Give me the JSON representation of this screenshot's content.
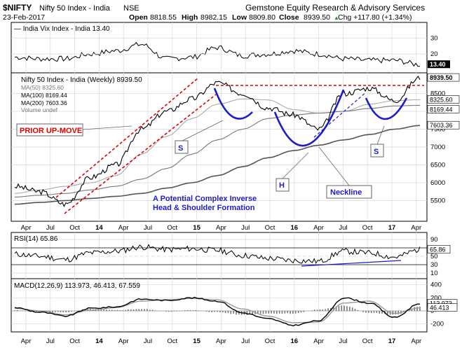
{
  "header": {
    "symbol": "$NIFTY",
    "name": "Nifty 50 Index - India",
    "exchange": "NSE",
    "provider": "Gemstone Equity Research & Advisory Services",
    "date": "23-Feb-2017",
    "open_label": "Open",
    "open": "8818.55",
    "high_label": "High",
    "high": "8982.15",
    "low_label": "Low",
    "low": "8809.80",
    "close_label": "Close",
    "close": "8939.50",
    "change": "Chg +117.80 (+1.34%)",
    "change_arrow": "▲"
  },
  "x_axis_labels": [
    "Apr",
    "Jul",
    "Oct",
    "14",
    "Apr",
    "Jul",
    "Oct",
    "15",
    "Apr",
    "Jul",
    "Oct",
    "16",
    "Apr",
    "Jul",
    "Oct",
    "17",
    "Apr"
  ],
  "colors": {
    "price": "#000000",
    "ma50": "#aaaaaa",
    "ma100": "#777777",
    "ma200": "#555555",
    "annotation_red": "#dd0000",
    "annotation_blue": "#1c1ccc",
    "callout_border": "#666666",
    "grid": "#d8d8d8"
  },
  "panels": {
    "vix": {
      "legend": "— India Vix Index - India 13.40",
      "ticks": [
        "30",
        "20"
      ],
      "last_badge": "13.40"
    },
    "price": {
      "legend": [
        "Nifty 50 Index - India (Weekly) 8939.50",
        "MA(50) 8325.60",
        "MA(100) 8169.44",
        "MA(200) 7603.36",
        "Volume undef"
      ],
      "ticks": [
        "8500",
        "8000",
        "7500",
        "7000",
        "6500",
        "6000",
        "5500"
      ],
      "badges": [
        "8939.50",
        "8325.60",
        "8169.44",
        "7603.36"
      ],
      "annotations": {
        "prior_up_move": "PRIOR UP-MOVE",
        "s_left": "S",
        "s_right": "S",
        "h": "H",
        "neckline": "Neckline",
        "formation_line1": "A Potential Complex Inverse",
        "formation_line2": "Head & Shoulder Formation"
      }
    },
    "rsi": {
      "legend": "RSI(14) 65.86",
      "ticks": [
        "90",
        "70",
        "50",
        "30",
        "10"
      ],
      "last_badge": "65.86"
    },
    "macd": {
      "legend": "MACD(12,26,9) 113.973, 46.413, 67.559",
      "ticks": [
        "400",
        "200",
        "0",
        "-200"
      ],
      "badges": [
        "113.973",
        "46.413"
      ]
    }
  },
  "chart_data": [
    {
      "type": "line",
      "title": "India Vix Index - India 13.40",
      "x": [
        "Apr",
        "Jul",
        "Oct",
        "14",
        "Apr",
        "Jul",
        "Oct",
        "15",
        "Apr",
        "Jul",
        "Oct",
        "16",
        "Apr",
        "Jul",
        "Oct",
        "17",
        "Apr"
      ],
      "series": [
        {
          "name": "India Vix Index - India",
          "values": [
            18,
            17,
            17,
            20,
            22,
            26,
            17,
            18,
            24,
            19,
            20,
            22,
            20,
            17,
            16,
            16,
            13.4
          ]
        }
      ],
      "ylim": [
        10,
        38
      ]
    },
    {
      "type": "line",
      "title": "Nifty 50 Index - India (Weekly) 8939.50",
      "x": [
        "Apr",
        "Jul",
        "Oct",
        "14",
        "Apr",
        "Jul",
        "Oct",
        "15",
        "Apr",
        "Jul",
        "Oct",
        "16",
        "Apr",
        "Jul",
        "Oct",
        "17",
        "Apr"
      ],
      "series": [
        {
          "name": "Nifty 50 Index - India (Weekly) 8939.50",
          "values": [
            5900,
            5750,
            5400,
            6150,
            6500,
            7500,
            8000,
            8350,
            8800,
            8500,
            8100,
            7900,
            7500,
            8500,
            8650,
            8300,
            8939.5
          ]
        },
        {
          "name": "MA(50) 8325.60",
          "values": [
            5700,
            5800,
            5900,
            6000,
            6200,
            6800,
            7300,
            7800,
            8200,
            8350,
            8320,
            8050,
            7950,
            8000,
            8200,
            8300,
            8325.6
          ]
        },
        {
          "name": "MA(100) 8169.44",
          "values": [
            5600,
            5650,
            5700,
            5800,
            5900,
            6100,
            6400,
            6800,
            7200,
            7500,
            7800,
            7900,
            7950,
            8000,
            8080,
            8150,
            8169.44
          ]
        },
        {
          "name": "MA(200) 7603.36",
          "values": [
            5400,
            5450,
            5500,
            5560,
            5620,
            5700,
            5850,
            6000,
            6200,
            6450,
            6700,
            6900,
            7050,
            7200,
            7350,
            7500,
            7603.36
          ]
        }
      ],
      "ylim": [
        5000,
        9000
      ]
    },
    {
      "type": "line",
      "title": "RSI(14) 65.86",
      "x": [
        "Apr",
        "Jul",
        "Oct",
        "14",
        "Apr",
        "Jul",
        "Oct",
        "15",
        "Apr",
        "Jul",
        "Oct",
        "16",
        "Apr",
        "Jul",
        "Oct",
        "17",
        "Apr"
      ],
      "series": [
        {
          "name": "RSI(14)",
          "values": [
            55,
            50,
            42,
            58,
            62,
            72,
            66,
            68,
            64,
            52,
            45,
            40,
            38,
            62,
            58,
            48,
            65.86
          ]
        }
      ],
      "ylim": [
        0,
        100
      ]
    },
    {
      "type": "line",
      "title": "MACD(12,26,9) 113.973, 46.413, 67.559",
      "x": [
        "Apr",
        "Jul",
        "Oct",
        "14",
        "Apr",
        "Jul",
        "Oct",
        "15",
        "Apr",
        "Jul",
        "Oct",
        "16",
        "Apr",
        "Jul",
        "Oct",
        "17",
        "Apr"
      ],
      "series": [
        {
          "name": "MACD",
          "values": [
            50,
            -20,
            -80,
            40,
            60,
            180,
            160,
            200,
            150,
            -30,
            -120,
            -220,
            -150,
            200,
            120,
            -100,
            113.973
          ]
        },
        {
          "name": "Signal",
          "values": [
            40,
            0,
            -60,
            10,
            50,
            150,
            170,
            190,
            170,
            30,
            -80,
            -180,
            -170,
            120,
            150,
            -40,
            46.413
          ]
        },
        {
          "name": "Histogram",
          "values": [
            10,
            -20,
            -20,
            30,
            10,
            30,
            -10,
            10,
            -20,
            -60,
            -40,
            -40,
            20,
            80,
            -30,
            -60,
            67.559
          ]
        }
      ],
      "ylim": [
        -300,
        450
      ]
    }
  ]
}
